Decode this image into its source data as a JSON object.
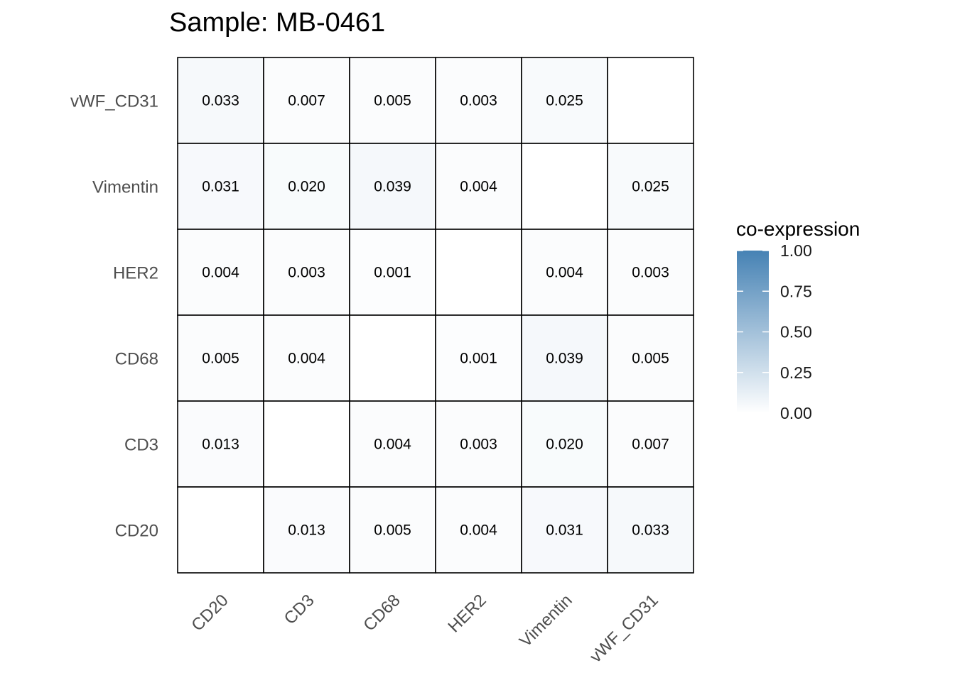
{
  "chart_data": {
    "type": "heatmap",
    "title": "Sample: MB-0461",
    "rows": [
      "vWF_CD31",
      "Vimentin",
      "HER2",
      "CD68",
      "CD3",
      "CD20"
    ],
    "columns": [
      "CD20",
      "CD3",
      "CD68",
      "HER2",
      "Vimentin",
      "vWF_CD31"
    ],
    "cells": [
      [
        0.033,
        0.007,
        0.005,
        0.003,
        0.025,
        null
      ],
      [
        0.031,
        0.02,
        0.039,
        0.004,
        null,
        0.025
      ],
      [
        0.004,
        0.003,
        0.001,
        null,
        0.004,
        0.003
      ],
      [
        0.005,
        0.004,
        null,
        0.001,
        0.039,
        0.005
      ],
      [
        0.013,
        null,
        0.004,
        0.003,
        0.02,
        0.007
      ],
      [
        null,
        0.013,
        0.005,
        0.004,
        0.031,
        0.033
      ]
    ],
    "cell_labels": [
      [
        "0.033",
        "0.007",
        "0.005",
        "0.003",
        "0.025",
        ""
      ],
      [
        "0.031",
        "0.020",
        "0.039",
        "0.004",
        "",
        "0.025"
      ],
      [
        "0.004",
        "0.003",
        "0.001",
        "",
        "0.004",
        "0.003"
      ],
      [
        "0.005",
        "0.004",
        "",
        "0.001",
        "0.039",
        "0.005"
      ],
      [
        "0.013",
        "",
        "0.004",
        "0.003",
        "0.020",
        "0.007"
      ],
      [
        "",
        "0.013",
        "0.005",
        "0.004",
        "0.031",
        "0.033"
      ]
    ],
    "legend": {
      "title": "co-expression",
      "placement": "right",
      "range": [
        0,
        1
      ],
      "ticks": [
        "1.00",
        "0.75",
        "0.50",
        "0.25",
        "0.00"
      ],
      "tick_values": [
        1.0,
        0.75,
        0.5,
        0.25,
        0.0
      ],
      "color_low": "#ffffff",
      "color_high": "#4682b4"
    },
    "grid": false
  }
}
